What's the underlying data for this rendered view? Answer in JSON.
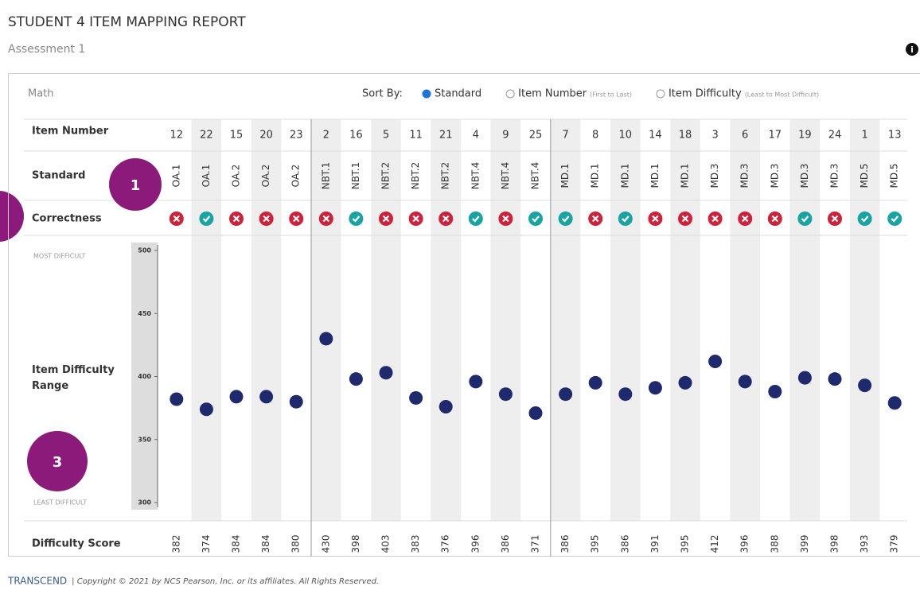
{
  "header": {
    "title": "STUDENT 4 ITEM MAPPING REPORT",
    "subtitle": "Assessment 1"
  },
  "subject": "Math",
  "sort": {
    "label": "Sort By:",
    "selected": 0,
    "options": [
      {
        "name": "Standard"
      },
      {
        "name": "Item Number",
        "note": "(First to Last)"
      },
      {
        "name": "Item Difficulty",
        "note": "(Least to Most Difficult)"
      }
    ]
  },
  "row_labels": {
    "item": "Item Number",
    "standard": "Standard",
    "correctness": "Correctness",
    "range": "Item Difficulty Range",
    "score": "Difficulty Score",
    "most": "MOST DIFFICULT",
    "least": "LEAST DIFFICULT"
  },
  "chart_data": {
    "type": "scatter",
    "categories": [
      12,
      22,
      15,
      20,
      23,
      2,
      16,
      5,
      11,
      21,
      4,
      9,
      25,
      7,
      8,
      10,
      14,
      18,
      3,
      6,
      17,
      19,
      24,
      1,
      13
    ],
    "standards": [
      "OA.1",
      "OA.1",
      "OA.2",
      "OA.2",
      "OA.2",
      "NBT.1",
      "NBT.1",
      "NBT.2",
      "NBT.2",
      "NBT.2",
      "NBT.4",
      "NBT.4",
      "NBT.4",
      "MD.1",
      "MD.1",
      "MD.1",
      "MD.1",
      "MD.1",
      "MD.3",
      "MD.3",
      "MD.3",
      "MD.3",
      "MD.3",
      "MD.5",
      "MD.5"
    ],
    "correct": [
      false,
      true,
      false,
      false,
      false,
      false,
      true,
      false,
      false,
      false,
      true,
      false,
      true,
      true,
      false,
      true,
      false,
      false,
      false,
      false,
      false,
      true,
      false,
      true,
      true
    ],
    "values": [
      382,
      374,
      384,
      384,
      380,
      430,
      398,
      403,
      383,
      376,
      396,
      386,
      371,
      386,
      395,
      386,
      391,
      395,
      412,
      396,
      388,
      399,
      398,
      393,
      379
    ],
    "color": "#1f2a6e",
    "ylim": [
      300,
      500
    ],
    "yticks": [
      300,
      350,
      400,
      450,
      500
    ]
  },
  "callouts": [
    "1",
    "3"
  ],
  "footer": {
    "brand": "TRANSCEND",
    "copyright": "| Copyright © 2021 by NCS Pearson, Inc. or its affiliates. All Rights Reserved."
  }
}
